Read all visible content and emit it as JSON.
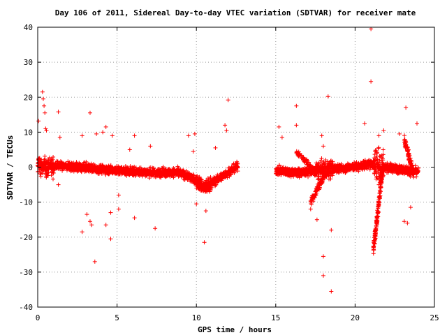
{
  "chart_data": {
    "type": "scatter",
    "title": "Day 106 of 2011, Sidereal Day-to-day VTEC variation (SDTVAR) for receiver mate",
    "xlabel": "GPS time / hours",
    "ylabel": "SDTVAR / TECUs",
    "xlim": [
      0,
      25
    ],
    "ylim": [
      -40,
      40
    ],
    "xticks": [
      0,
      5,
      10,
      15,
      20,
      25
    ],
    "yticks": [
      -40,
      -30,
      -20,
      -10,
      0,
      10,
      20,
      30,
      40
    ],
    "grid": true,
    "marker": "+",
    "color": "#ff0000",
    "data_gap_hours": [
      12.6,
      15.0
    ],
    "outliers": [
      {
        "x": 0.05,
        "y": 13.2
      },
      {
        "x": 0.3,
        "y": 21.5
      },
      {
        "x": 0.35,
        "y": 19.5
      },
      {
        "x": 0.4,
        "y": 17.5
      },
      {
        "x": 0.45,
        "y": 15.5
      },
      {
        "x": 0.5,
        "y": 11.0
      },
      {
        "x": 0.55,
        "y": 10.5
      },
      {
        "x": 1.3,
        "y": 15.8
      },
      {
        "x": 1.4,
        "y": 8.5
      },
      {
        "x": 1.3,
        "y": -5.0
      },
      {
        "x": 2.8,
        "y": 9.0
      },
      {
        "x": 2.8,
        "y": -18.5
      },
      {
        "x": 3.3,
        "y": 15.5
      },
      {
        "x": 3.1,
        "y": -13.5
      },
      {
        "x": 3.3,
        "y": -15.5
      },
      {
        "x": 3.4,
        "y": -16.5
      },
      {
        "x": 3.6,
        "y": -27.0
      },
      {
        "x": 3.7,
        "y": 9.5
      },
      {
        "x": 4.1,
        "y": 10.0
      },
      {
        "x": 4.3,
        "y": 11.5
      },
      {
        "x": 4.3,
        "y": -16.5
      },
      {
        "x": 4.6,
        "y": -20.5
      },
      {
        "x": 4.6,
        "y": -13.0
      },
      {
        "x": 4.7,
        "y": 9.0
      },
      {
        "x": 5.1,
        "y": -8.0
      },
      {
        "x": 5.1,
        "y": -12.0
      },
      {
        "x": 5.8,
        "y": 5.0
      },
      {
        "x": 6.1,
        "y": 9.0
      },
      {
        "x": 6.1,
        "y": -14.5
      },
      {
        "x": 7.1,
        "y": 6.0
      },
      {
        "x": 7.4,
        "y": -17.5
      },
      {
        "x": 9.5,
        "y": 9.0
      },
      {
        "x": 9.8,
        "y": 4.5
      },
      {
        "x": 9.9,
        "y": 9.5
      },
      {
        "x": 10.0,
        "y": -10.5
      },
      {
        "x": 10.5,
        "y": -21.5
      },
      {
        "x": 10.6,
        "y": -12.5
      },
      {
        "x": 11.2,
        "y": 5.5
      },
      {
        "x": 11.8,
        "y": 12.0
      },
      {
        "x": 11.9,
        "y": 10.5
      },
      {
        "x": 12.0,
        "y": 19.2
      },
      {
        "x": 15.2,
        "y": 11.5
      },
      {
        "x": 15.4,
        "y": 8.5
      },
      {
        "x": 16.3,
        "y": 17.5
      },
      {
        "x": 16.3,
        "y": 12.0
      },
      {
        "x": 17.2,
        "y": -12.0
      },
      {
        "x": 17.6,
        "y": -15.0
      },
      {
        "x": 17.9,
        "y": 9.0
      },
      {
        "x": 18.0,
        "y": -25.5
      },
      {
        "x": 18.0,
        "y": -31.0
      },
      {
        "x": 18.0,
        "y": 6.0
      },
      {
        "x": 18.3,
        "y": 20.2
      },
      {
        "x": 18.5,
        "y": -35.5
      },
      {
        "x": 18.5,
        "y": -18.0
      },
      {
        "x": 20.6,
        "y": 12.5
      },
      {
        "x": 21.0,
        "y": 24.5
      },
      {
        "x": 21.0,
        "y": 39.5
      },
      {
        "x": 21.5,
        "y": -5.0
      },
      {
        "x": 21.5,
        "y": 9.0
      },
      {
        "x": 21.8,
        "y": 10.5
      },
      {
        "x": 22.8,
        "y": 9.5
      },
      {
        "x": 23.2,
        "y": 17.0
      },
      {
        "x": 23.1,
        "y": -15.5
      },
      {
        "x": 23.3,
        "y": -16.0
      },
      {
        "x": 23.5,
        "y": -11.5
      },
      {
        "x": 23.9,
        "y": 12.5
      }
    ]
  }
}
